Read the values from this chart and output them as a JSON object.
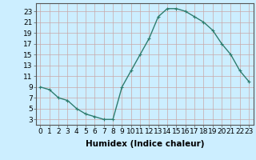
{
  "x": [
    0,
    1,
    2,
    3,
    4,
    5,
    6,
    7,
    8,
    9,
    10,
    11,
    12,
    13,
    14,
    15,
    16,
    17,
    18,
    19,
    20,
    21,
    22,
    23
  ],
  "y": [
    9,
    8.5,
    7,
    6.5,
    5,
    4,
    3.5,
    3,
    3,
    9,
    12,
    15,
    18,
    22,
    23.5,
    23.5,
    23,
    22,
    21,
    19.5,
    17,
    15,
    12,
    10
  ],
  "line_color": "#2e7d6e",
  "marker": "+",
  "bg_color": "#cceeff",
  "grid_color_h": "#c8a8a8",
  "grid_color_v": "#c8a8a8",
  "xlabel": "Humidex (Indice chaleur)",
  "ylabel_ticks": [
    3,
    5,
    7,
    9,
    11,
    13,
    15,
    17,
    19,
    21,
    23
  ],
  "xtick_labels": [
    "0",
    "1",
    "2",
    "3",
    "4",
    "5",
    "6",
    "7",
    "8",
    "9",
    "10",
    "11",
    "12",
    "13",
    "14",
    "15",
    "16",
    "17",
    "18",
    "19",
    "20",
    "21",
    "22",
    "23"
  ],
  "xlim": [
    -0.5,
    23.5
  ],
  "ylim": [
    2.0,
    24.5
  ],
  "xlabel_fontsize": 7.5,
  "tick_fontsize": 6.5,
  "spine_color": "#555555"
}
